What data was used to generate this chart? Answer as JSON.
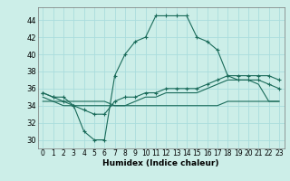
{
  "title": "",
  "xlabel": "Humidex (Indice chaleur)",
  "background_color": "#cceee8",
  "grid_color": "#aadddd",
  "line_color": "#1a6b5a",
  "xlim": [
    -0.5,
    23.5
  ],
  "ylim": [
    29.0,
    45.5
  ],
  "xticks": [
    0,
    1,
    2,
    3,
    4,
    5,
    6,
    7,
    8,
    9,
    10,
    11,
    12,
    13,
    14,
    15,
    16,
    17,
    18,
    19,
    20,
    21,
    22,
    23
  ],
  "yticks": [
    30,
    32,
    34,
    36,
    38,
    40,
    42,
    44
  ],
  "series1_x": [
    0,
    1,
    2,
    3,
    4,
    5,
    6,
    7,
    8,
    9,
    10,
    11,
    12,
    13,
    14,
    15,
    16,
    17,
    18,
    19,
    20,
    21,
    22,
    23
  ],
  "series1_y": [
    35.5,
    35.0,
    35.0,
    34.0,
    31.0,
    30.0,
    30.0,
    37.5,
    40.0,
    41.5,
    42.0,
    44.5,
    44.5,
    44.5,
    44.5,
    42.0,
    41.5,
    40.5,
    37.5,
    37.0,
    37.0,
    37.0,
    36.5,
    36.0
  ],
  "series2_x": [
    0,
    1,
    2,
    3,
    4,
    5,
    6,
    7,
    8,
    9,
    10,
    11,
    12,
    13,
    14,
    15,
    16,
    17,
    18,
    19,
    20,
    21,
    22,
    23
  ],
  "series2_y": [
    35.5,
    35.0,
    34.5,
    34.0,
    33.5,
    33.0,
    33.0,
    34.5,
    35.0,
    35.0,
    35.5,
    35.5,
    36.0,
    36.0,
    36.0,
    36.0,
    36.5,
    37.0,
    37.5,
    37.5,
    37.5,
    37.5,
    37.5,
    37.0
  ],
  "series3_x": [
    0,
    1,
    2,
    3,
    4,
    5,
    6,
    7,
    8,
    9,
    10,
    11,
    12,
    13,
    14,
    15,
    16,
    17,
    18,
    19,
    20,
    21,
    22,
    23
  ],
  "series3_y": [
    35.0,
    34.5,
    34.0,
    34.0,
    34.0,
    34.0,
    34.0,
    34.0,
    34.0,
    34.5,
    35.0,
    35.0,
    35.5,
    35.5,
    35.5,
    35.5,
    36.0,
    36.5,
    37.0,
    37.0,
    37.0,
    36.5,
    34.5,
    34.5
  ],
  "series4_x": [
    0,
    1,
    2,
    3,
    4,
    5,
    6,
    7,
    8,
    9,
    10,
    11,
    12,
    13,
    14,
    15,
    16,
    17,
    18,
    19,
    20,
    21,
    22,
    23
  ],
  "series4_y": [
    34.5,
    34.5,
    34.5,
    34.5,
    34.5,
    34.5,
    34.5,
    34.0,
    34.0,
    34.0,
    34.0,
    34.0,
    34.0,
    34.0,
    34.0,
    34.0,
    34.0,
    34.0,
    34.5,
    34.5,
    34.5,
    34.5,
    34.5,
    34.5
  ]
}
